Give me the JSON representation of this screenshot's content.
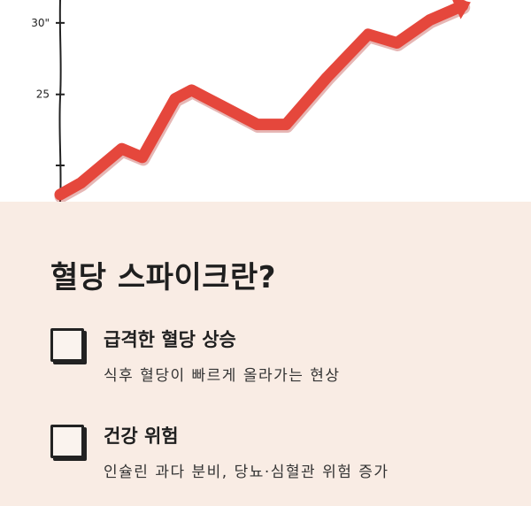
{
  "chart_data": {
    "type": "line",
    "y_ticks": [
      {
        "label": "30\"",
        "value": 30
      },
      {
        "label": "25",
        "value": 25
      }
    ],
    "ylim": [
      17.5,
      31.6
    ],
    "xlim": [
      0,
      1
    ],
    "x": [
      0.0,
      0.05,
      0.15,
      0.2,
      0.28,
      0.32,
      0.36,
      0.48,
      0.55,
      0.65,
      0.75,
      0.82,
      0.9,
      0.98
    ],
    "values": [
      18,
      18.8,
      21.2,
      20.6,
      24.7,
      25.3,
      24.7,
      22.9,
      22.9,
      26.2,
      29.2,
      28.6,
      30.2,
      31.2
    ],
    "line_color": "#e5473c",
    "grid": false
  },
  "panel": {
    "title": "혈당 스파이크란?",
    "background": "#f9ece4",
    "items": [
      {
        "heading": "급격한 혈당 상승",
        "description": "식후 혈당이 빠르게 올라가는 현상"
      },
      {
        "heading": "건강 위험",
        "description": "인슐린 과다 분비, 당뇨·심혈관 위험 증가"
      }
    ]
  }
}
